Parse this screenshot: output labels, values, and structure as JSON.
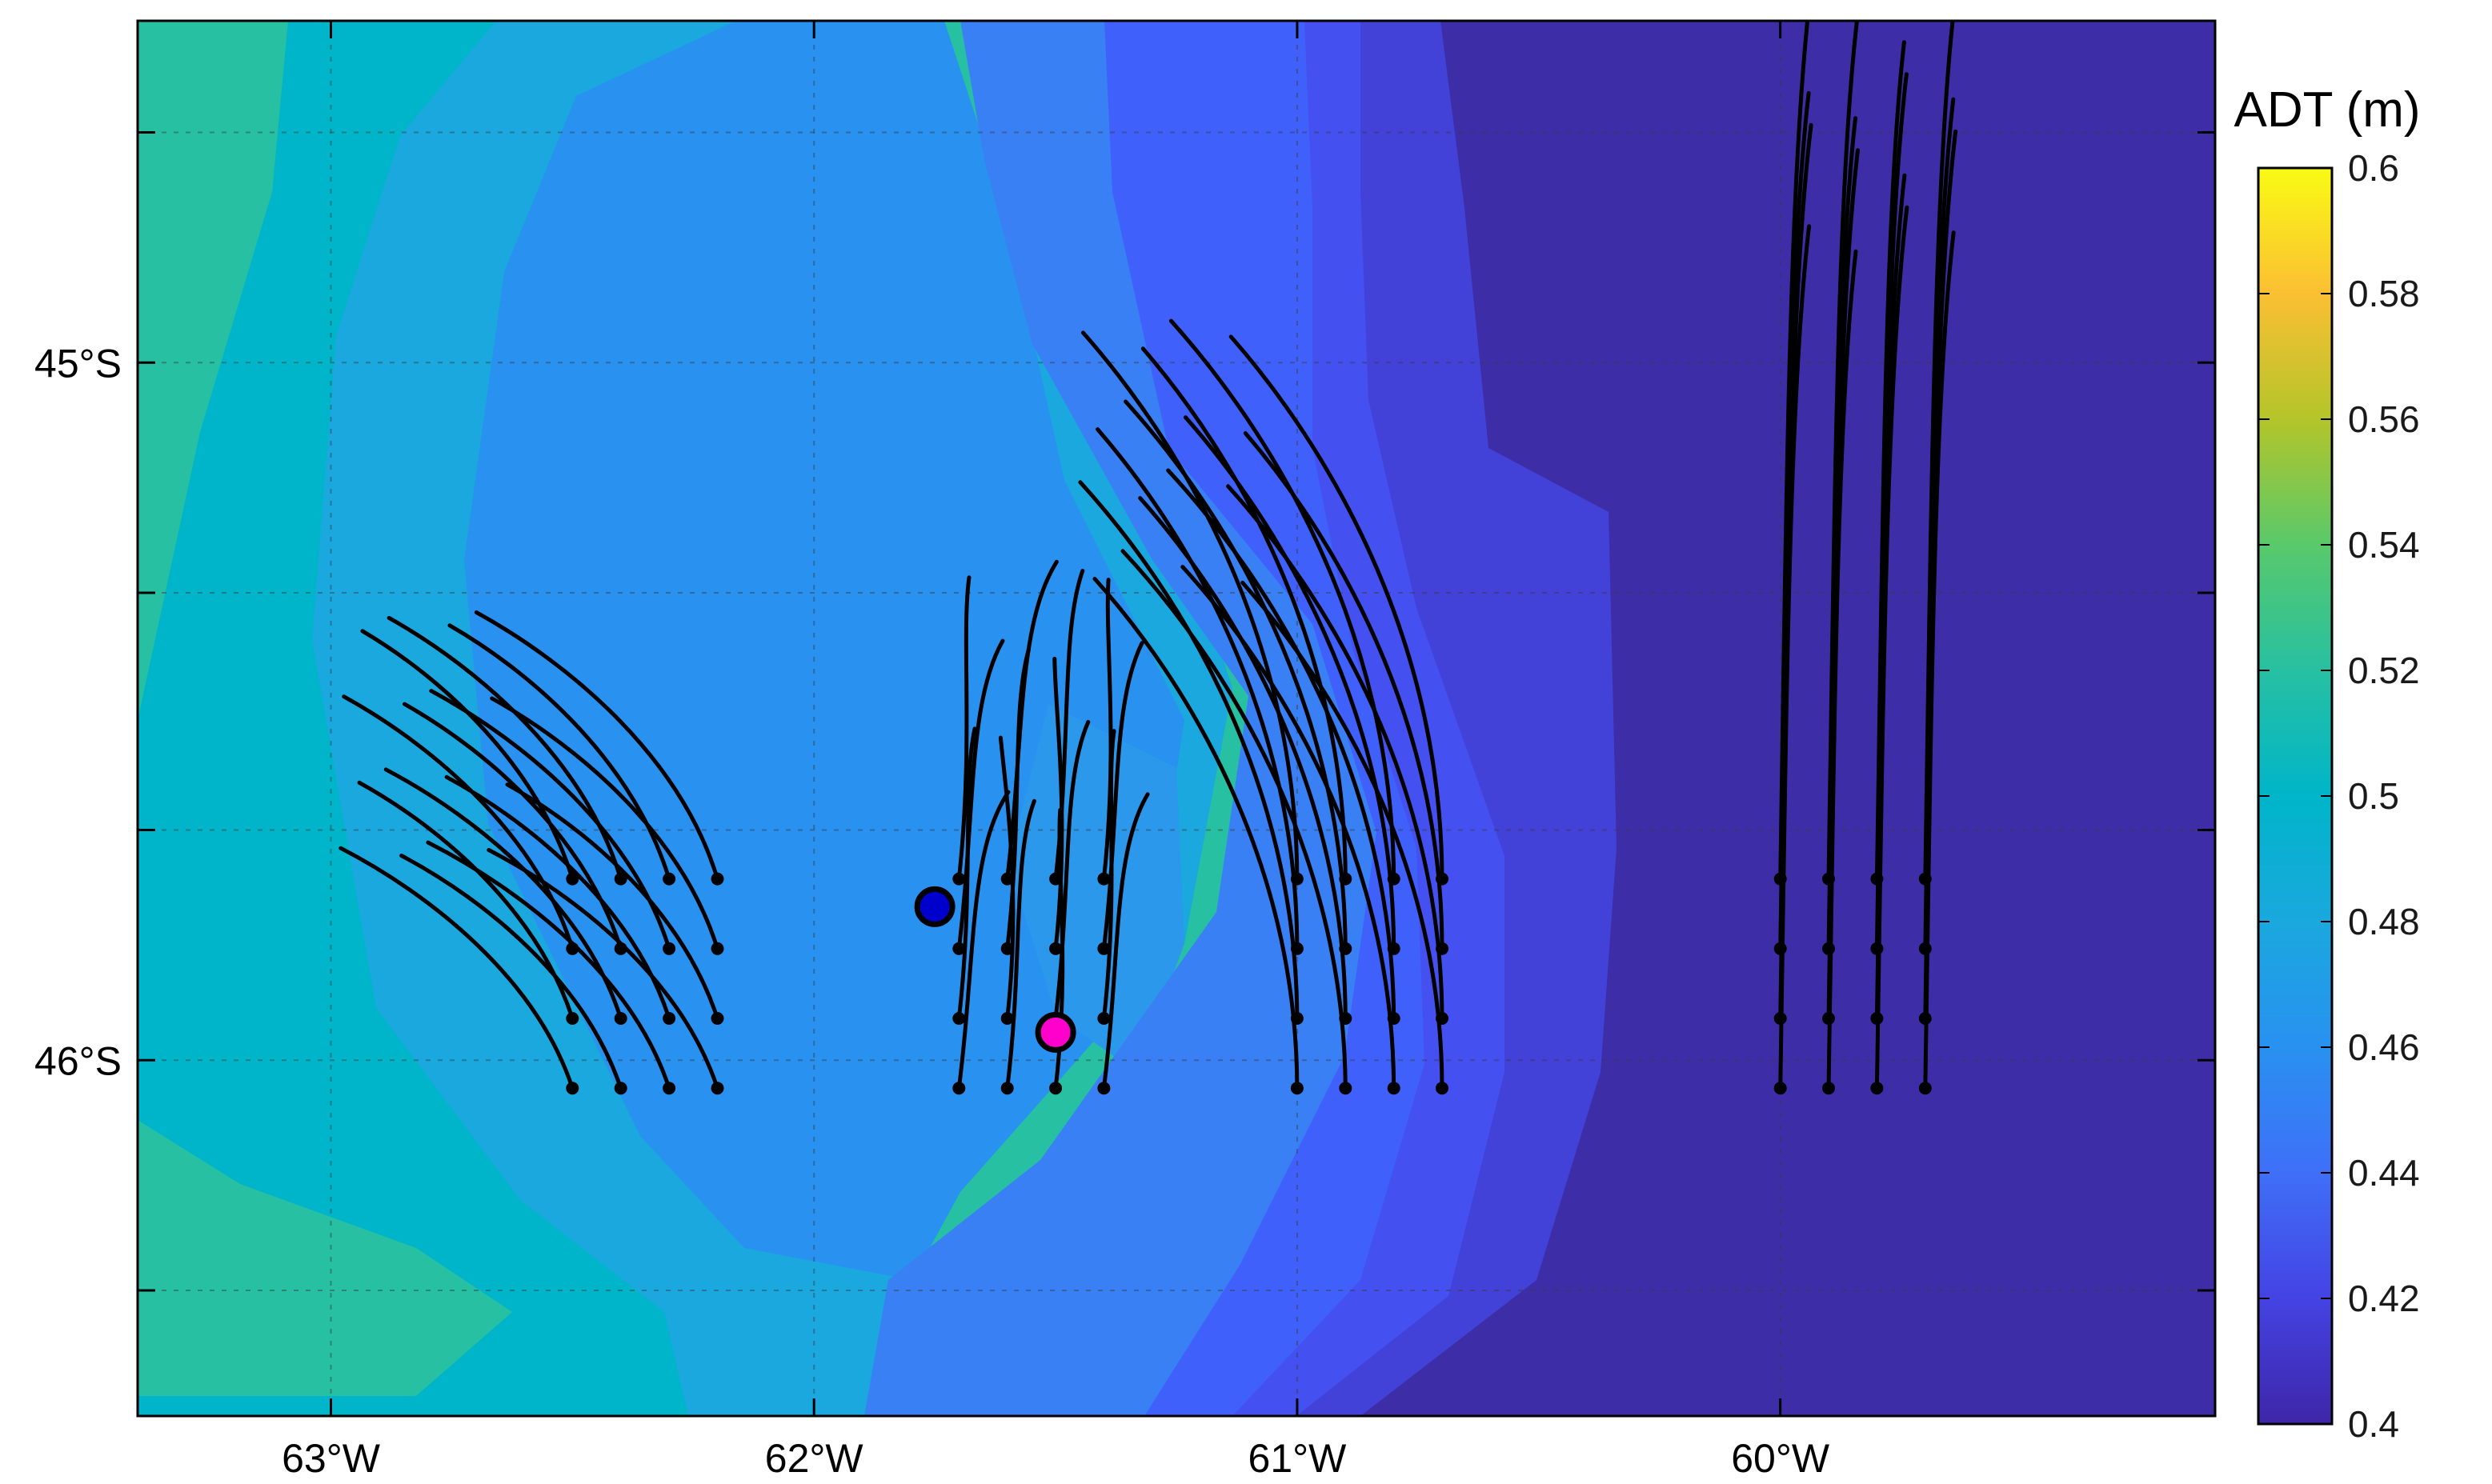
{
  "map": {
    "lon_range": [
      -63.4,
      -59.1
    ],
    "lat_range": [
      -46.51,
      -44.51
    ],
    "x_ticks": [
      {
        "lon": -63,
        "label": "63°W"
      },
      {
        "lon": -62,
        "label": "62°W"
      },
      {
        "lon": -61,
        "label": "61°W"
      },
      {
        "lon": -60,
        "label": "60°W"
      }
    ],
    "y_ticks": [
      {
        "lat": -45,
        "label": "45°S"
      },
      {
        "lat": -46,
        "label": "46°S"
      }
    ],
    "y_minor_ticks": [
      -44.67,
      -45.33,
      -45.67,
      -46.33
    ],
    "grid": true
  },
  "colorbar": {
    "title": "ADT (m)",
    "min": 0.4,
    "max": 0.6,
    "ticks": [
      "0.6",
      "0.58",
      "0.56",
      "0.54",
      "0.52",
      "0.5",
      "0.48",
      "0.46",
      "0.44",
      "0.42",
      "0.4"
    ],
    "colormap": "parula"
  },
  "markers": [
    {
      "name": "blue-marker",
      "lon": -61.75,
      "lat": -45.78,
      "color": "#0000cc"
    },
    {
      "name": "magenta-marker",
      "lon": -61.5,
      "lat": -45.96,
      "color": "#ff00cc"
    }
  ],
  "trajectory_groups": [
    {
      "name": "west",
      "lons": [
        -62.5,
        -62.4,
        -62.3,
        -62.2
      ],
      "lats": [
        -45.74,
        -45.84,
        -45.94,
        -46.04
      ],
      "dlon": -0.47,
      "dlat": 0.37
    },
    {
      "name": "central",
      "lons": [
        -61.7,
        -61.6,
        -61.5,
        -61.4
      ],
      "lats": [
        -45.74,
        -45.84,
        -45.94,
        -46.04
      ],
      "dlon": 0.05,
      "dlat": 0.44
    },
    {
      "name": "east-central",
      "lons": [
        -61.0,
        -60.9,
        -60.8,
        -60.7
      ],
      "lats": [
        -45.74,
        -45.84,
        -45.94,
        -46.04
      ],
      "dlon": -0.44,
      "dlat": 0.78
    },
    {
      "name": "east",
      "lons": [
        -60.0,
        -59.9,
        -59.8,
        -59.7
      ],
      "lats": [
        -45.74,
        -45.84,
        -45.94,
        -46.04
      ],
      "dlon": 0.06,
      "dlat": 1.24
    }
  ]
}
